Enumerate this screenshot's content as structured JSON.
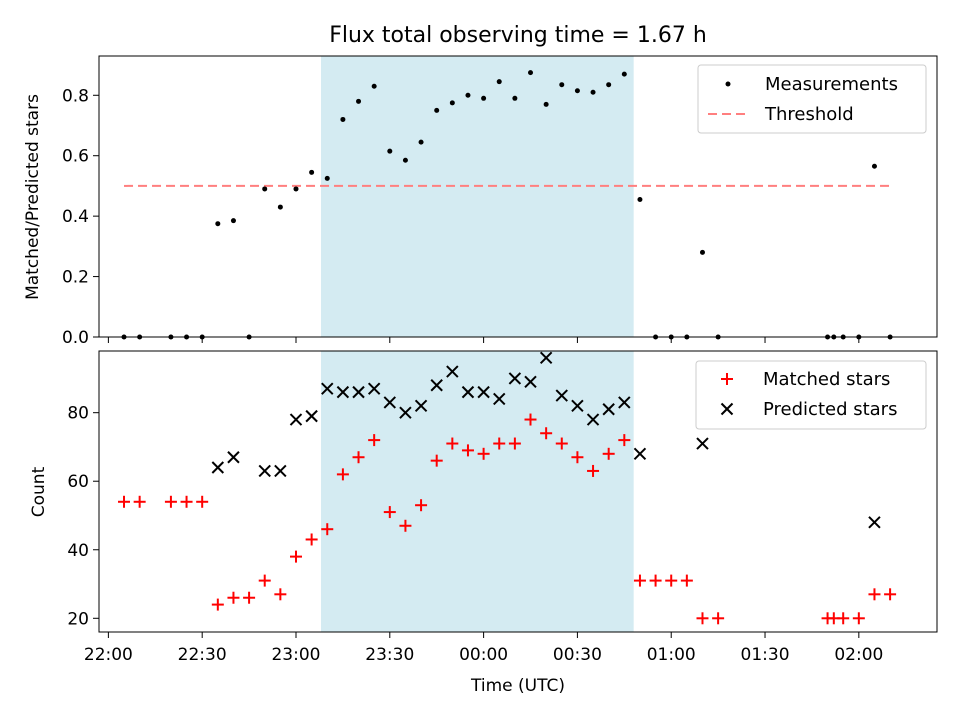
{
  "title": "Flux total observing time = 1.67 h",
  "colors": {
    "shade": "#add8e6",
    "threshold": "#ff7f7f",
    "matched": "#ff0000",
    "predicted": "#000000",
    "measurement": "#000000"
  },
  "chart_data": [
    {
      "type": "scatter",
      "panel": "top",
      "ylabel": "Matched/Predicted stars",
      "xlabel": "",
      "xlim": [
        "21:57",
        "02:25"
      ],
      "ylim": [
        0,
        0.93
      ],
      "yticks": [
        0.0,
        0.2,
        0.4,
        0.6,
        0.8
      ],
      "ytick_labels": [
        "0.0",
        "0.2",
        "0.4",
        "0.6",
        "0.8"
      ],
      "xticks": [
        "22:00",
        "22:30",
        "23:00",
        "23:30",
        "00:00",
        "00:30",
        "01:00",
        "01:30",
        "02:00"
      ],
      "shaded_span": [
        "23:08",
        "00:48"
      ],
      "legend_position": "top-right",
      "series": [
        {
          "name": "Measurements",
          "marker": "dot",
          "x": [
            "22:05",
            "22:10",
            "22:20",
            "22:25",
            "22:30",
            "22:35",
            "22:40",
            "22:45",
            "22:50",
            "22:55",
            "23:00",
            "23:05",
            "23:10",
            "23:15",
            "23:20",
            "23:25",
            "23:30",
            "23:35",
            "23:40",
            "23:45",
            "23:50",
            "23:55",
            "00:00",
            "00:05",
            "00:10",
            "00:15",
            "00:20",
            "00:25",
            "00:30",
            "00:35",
            "00:40",
            "00:45",
            "00:50",
            "00:55",
            "01:00",
            "01:05",
            "01:10",
            "01:15",
            "01:50",
            "01:52",
            "01:55",
            "02:00",
            "02:05",
            "02:10"
          ],
          "y": [
            0,
            0,
            0,
            0,
            0,
            0.375,
            0.385,
            0,
            0.49,
            0.43,
            0.49,
            0.545,
            0.525,
            0.72,
            0.78,
            0.83,
            0.615,
            0.585,
            0.645,
            0.75,
            0.775,
            0.8,
            0.79,
            0.845,
            0.79,
            0.875,
            0.77,
            0.835,
            0.815,
            0.81,
            0.835,
            0.87,
            0.455,
            0,
            0,
            0,
            0.28,
            0,
            0,
            0,
            0,
            0,
            0.565,
            0
          ]
        },
        {
          "name": "Threshold",
          "style": "dashed",
          "x": [
            "22:05",
            "02:10"
          ],
          "y": [
            0.5,
            0.5
          ]
        }
      ]
    },
    {
      "type": "scatter",
      "panel": "bottom",
      "ylabel": "Count",
      "xlabel": "Time (UTC)",
      "xlim": [
        "21:57",
        "02:25"
      ],
      "ylim": [
        16,
        98
      ],
      "yticks": [
        20,
        40,
        60,
        80
      ],
      "xticks": [
        "22:00",
        "22:30",
        "23:00",
        "23:30",
        "00:00",
        "00:30",
        "01:00",
        "01:30",
        "02:00"
      ],
      "shaded_span": [
        "23:08",
        "00:48"
      ],
      "legend_position": "top-right",
      "series": [
        {
          "name": "Matched stars",
          "marker": "plus",
          "x": [
            "22:05",
            "22:10",
            "22:20",
            "22:25",
            "22:30",
            "22:35",
            "22:40",
            "22:45",
            "22:50",
            "22:55",
            "23:00",
            "23:05",
            "23:10",
            "23:15",
            "23:20",
            "23:25",
            "23:30",
            "23:35",
            "23:40",
            "23:45",
            "23:50",
            "23:55",
            "00:00",
            "00:05",
            "00:10",
            "00:15",
            "00:20",
            "00:25",
            "00:30",
            "00:35",
            "00:40",
            "00:45",
            "00:50",
            "00:55",
            "01:00",
            "01:05",
            "01:10",
            "01:15",
            "01:50",
            "01:52",
            "01:55",
            "02:00",
            "02:05",
            "02:10"
          ],
          "y": [
            54,
            54,
            54,
            54,
            54,
            24,
            26,
            26,
            31,
            27,
            38,
            43,
            46,
            62,
            67,
            72,
            51,
            47,
            53,
            66,
            71,
            69,
            68,
            71,
            71,
            78,
            74,
            71,
            67,
            63,
            68,
            72,
            31,
            31,
            31,
            31,
            20,
            20,
            20,
            20,
            20,
            20,
            27,
            27
          ]
        },
        {
          "name": "Predicted stars",
          "marker": "x",
          "x": [
            "22:35",
            "22:40",
            "22:50",
            "22:55",
            "23:00",
            "23:05",
            "23:10",
            "23:15",
            "23:20",
            "23:25",
            "23:30",
            "23:35",
            "23:40",
            "23:45",
            "23:50",
            "23:55",
            "00:00",
            "00:05",
            "00:10",
            "00:15",
            "00:20",
            "00:25",
            "00:30",
            "00:35",
            "00:40",
            "00:45",
            "00:50",
            "01:10",
            "02:05"
          ],
          "y": [
            64,
            67,
            63,
            63,
            78,
            79,
            87,
            86,
            86,
            87,
            83,
            80,
            82,
            88,
            92,
            86,
            86,
            84,
            90,
            89,
            96,
            85,
            82,
            78,
            81,
            83,
            68,
            71,
            48
          ]
        }
      ]
    }
  ]
}
